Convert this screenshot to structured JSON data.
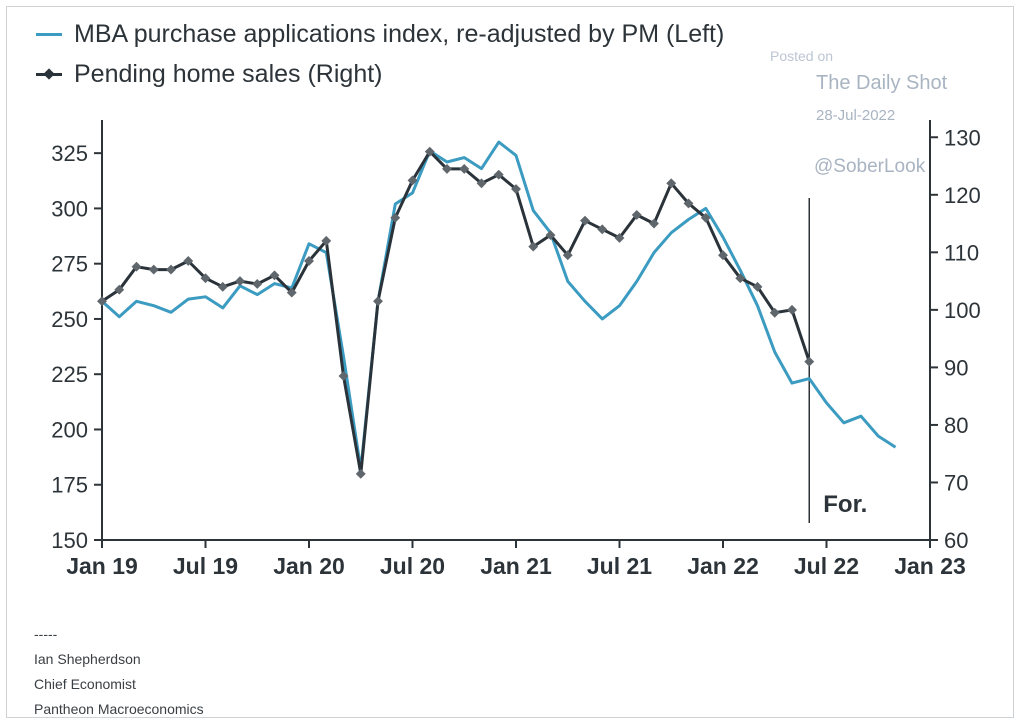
{
  "watermark": {
    "posted": "Posted on",
    "site": "The Daily Shot",
    "date": "28-Jul-2022",
    "handle": "@SoberLook"
  },
  "footer": {
    "separator": "-----",
    "name": "Ian Shepherdson",
    "role": "Chief Economist",
    "org": "Pantheon Macroeconomics"
  },
  "colors": {
    "mba": "#3b9bc0",
    "pending": "#2b333a",
    "axis": "#2d3439"
  },
  "chart_data": {
    "type": "line",
    "legend_position": "top-left",
    "grid": false,
    "forecast_label": "For.",
    "forecast_start": "2022-06",
    "x_range": [
      "2019-01",
      "2023-01"
    ],
    "x_ticks": [
      {
        "label": "Jan 19",
        "date": "2019-01"
      },
      {
        "label": "Jul 19",
        "date": "2019-07"
      },
      {
        "label": "Jan 20",
        "date": "2020-01"
      },
      {
        "label": "Jul 20",
        "date": "2020-07"
      },
      {
        "label": "Jan 21",
        "date": "2021-01"
      },
      {
        "label": "Jul 21",
        "date": "2021-07"
      },
      {
        "label": "Jan 22",
        "date": "2022-01"
      },
      {
        "label": "Jul 22",
        "date": "2022-07"
      },
      {
        "label": "Jan 23",
        "date": "2023-01"
      }
    ],
    "y_left": {
      "ylim": [
        150,
        340
      ],
      "ticks": [
        150,
        175,
        200,
        225,
        250,
        275,
        300,
        325
      ]
    },
    "y_right": {
      "ylim": [
        60,
        133
      ],
      "ticks": [
        60,
        70,
        80,
        90,
        100,
        110,
        120,
        130
      ]
    },
    "series": [
      {
        "name": "MBA purchase applications index, re-adjusted by PM (Left)",
        "axis": "left",
        "marker": false,
        "color": "#3b9bc0",
        "points": [
          [
            "2019-01",
            258
          ],
          [
            "2019-02",
            251
          ],
          [
            "2019-03",
            258
          ],
          [
            "2019-04",
            256
          ],
          [
            "2019-05",
            253
          ],
          [
            "2019-06",
            259
          ],
          [
            "2019-07",
            260
          ],
          [
            "2019-08",
            255
          ],
          [
            "2019-09",
            265
          ],
          [
            "2019-10",
            261
          ],
          [
            "2019-11",
            266
          ],
          [
            "2019-12",
            264
          ],
          [
            "2020-01",
            284
          ],
          [
            "2020-02",
            280
          ],
          [
            "2020-03",
            233
          ],
          [
            "2020-04",
            182
          ],
          [
            "2020-05",
            258
          ],
          [
            "2020-06",
            302
          ],
          [
            "2020-07",
            307
          ],
          [
            "2020-08",
            326
          ],
          [
            "2020-09",
            321
          ],
          [
            "2020-10",
            323
          ],
          [
            "2020-11",
            318
          ],
          [
            "2020-12",
            330
          ],
          [
            "2021-01",
            324
          ],
          [
            "2021-02",
            299
          ],
          [
            "2021-03",
            289
          ],
          [
            "2021-04",
            267
          ],
          [
            "2021-05",
            258
          ],
          [
            "2021-06",
            250
          ],
          [
            "2021-07",
            256
          ],
          [
            "2021-08",
            267
          ],
          [
            "2021-09",
            280
          ],
          [
            "2021-10",
            289
          ],
          [
            "2021-11",
            295
          ],
          [
            "2021-12",
            300
          ],
          [
            "2022-01",
            287
          ],
          [
            "2022-02",
            272
          ],
          [
            "2022-03",
            256
          ],
          [
            "2022-04",
            235
          ],
          [
            "2022-05",
            221
          ],
          [
            "2022-06",
            223
          ],
          [
            "2022-07",
            212
          ],
          [
            "2022-08",
            203
          ],
          [
            "2022-09",
            206
          ],
          [
            "2022-10",
            197
          ],
          [
            "2022-11",
            192
          ]
        ]
      },
      {
        "name": "Pending home sales (Right)",
        "axis": "right",
        "marker": true,
        "color": "#2b333a",
        "points": [
          [
            "2019-01",
            101.5
          ],
          [
            "2019-02",
            103.5
          ],
          [
            "2019-03",
            107.5
          ],
          [
            "2019-04",
            107
          ],
          [
            "2019-05",
            107
          ],
          [
            "2019-06",
            108.5
          ],
          [
            "2019-07",
            105.5
          ],
          [
            "2019-08",
            104
          ],
          [
            "2019-09",
            105
          ],
          [
            "2019-10",
            104.5
          ],
          [
            "2019-11",
            106
          ],
          [
            "2019-12",
            103
          ],
          [
            "2020-01",
            108.5
          ],
          [
            "2020-02",
            112
          ],
          [
            "2020-03",
            88.5
          ],
          [
            "2020-04",
            71.5
          ],
          [
            "2020-05",
            101.5
          ],
          [
            "2020-06",
            116
          ],
          [
            "2020-07",
            122.5
          ],
          [
            "2020-08",
            127.5
          ],
          [
            "2020-09",
            124.5
          ],
          [
            "2020-10",
            124.5
          ],
          [
            "2020-11",
            122
          ],
          [
            "2020-12",
            123.5
          ],
          [
            "2021-01",
            121
          ],
          [
            "2021-02",
            111
          ],
          [
            "2021-03",
            113
          ],
          [
            "2021-04",
            109.5
          ],
          [
            "2021-05",
            115.5
          ],
          [
            "2021-06",
            114
          ],
          [
            "2021-07",
            112.5
          ],
          [
            "2021-08",
            116.5
          ],
          [
            "2021-09",
            115
          ],
          [
            "2021-10",
            122
          ],
          [
            "2021-11",
            118.5
          ],
          [
            "2021-12",
            116
          ],
          [
            "2022-01",
            109.5
          ],
          [
            "2022-02",
            105.5
          ],
          [
            "2022-03",
            104
          ],
          [
            "2022-04",
            99.5
          ],
          [
            "2022-05",
            100
          ],
          [
            "2022-06",
            91
          ]
        ]
      }
    ]
  }
}
